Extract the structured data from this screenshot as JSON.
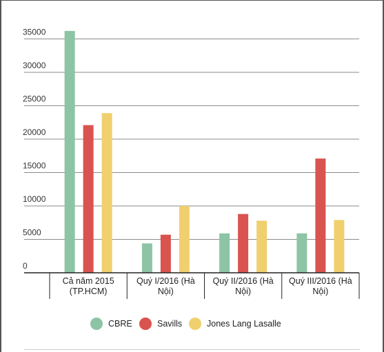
{
  "chart_data": {
    "type": "bar",
    "categories": [
      [
        "Cả năm 2015",
        "(TP.HCM)"
      ],
      [
        "Quý I/2016 (Hà",
        "Nội)"
      ],
      [
        "Quý II/2016 (Hà",
        "Nội)"
      ],
      [
        "Quý III/2016 (Hà",
        "Nội)"
      ]
    ],
    "series": [
      {
        "name": "CBRE",
        "color": "#8dc4a5",
        "values": [
          36200,
          4400,
          5900,
          5900
        ]
      },
      {
        "name": "Savills",
        "color": "#d9534f",
        "values": [
          22100,
          5700,
          8800,
          17100
        ]
      },
      {
        "name": "Jones Lang Lasalle",
        "color": "#f0d06e",
        "values": [
          23900,
          10000,
          7800,
          7900
        ]
      }
    ],
    "yticks": [
      0,
      5000,
      10000,
      15000,
      20000,
      25000,
      30000,
      35000
    ],
    "ylim": [
      0,
      36500
    ],
    "grid": true,
    "legend": "bottom"
  }
}
